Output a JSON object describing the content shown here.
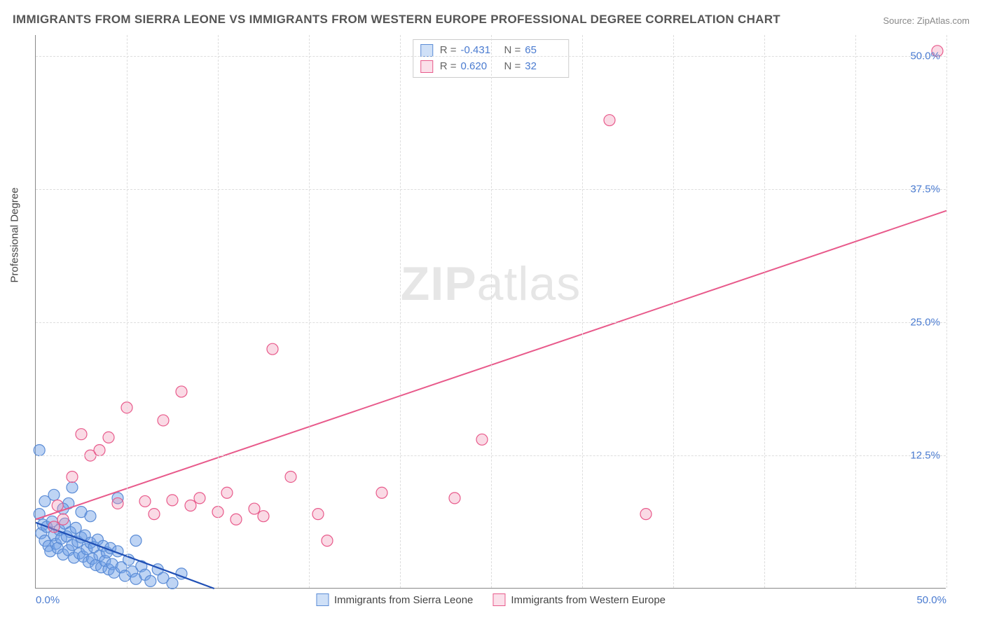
{
  "title": "IMMIGRANTS FROM SIERRA LEONE VS IMMIGRANTS FROM WESTERN EUROPE PROFESSIONAL DEGREE CORRELATION CHART",
  "source": "Source: ZipAtlas.com",
  "ylabel": "Professional Degree",
  "watermark_bold": "ZIP",
  "watermark_rest": "atlas",
  "chart": {
    "type": "scatter",
    "xlim": [
      0,
      50
    ],
    "ylim": [
      0,
      52
    ],
    "xtick_labels": [
      "0.0%",
      "50.0%"
    ],
    "xtick_positions": [
      0,
      50
    ],
    "ytick_labels": [
      "12.5%",
      "25.0%",
      "37.5%",
      "50.0%"
    ],
    "ytick_positions": [
      12.5,
      25,
      37.5,
      50
    ],
    "xgrid_positions": [
      5,
      10,
      15,
      20,
      25,
      30,
      35,
      40,
      45,
      50
    ],
    "tick_color": "#4a7bd0",
    "grid_color": "#dddddd",
    "label_fontsize": 15,
    "marker_radius": 8,
    "series": [
      {
        "name": "Immigrants from Sierra Leone",
        "fill": "rgba(110,160,230,0.45)",
        "stroke": "#5b8cd6",
        "line_color": "#1f4fb5",
        "line_width": 2.2,
        "R": "-0.431",
        "N": "65",
        "swatch_fill": "#cfe0f7",
        "swatch_border": "#5b8cd6",
        "trend": {
          "x1": 0,
          "y1": 6.2,
          "x2": 9.8,
          "y2": 0
        },
        "points": [
          [
            0.3,
            5.2
          ],
          [
            0.4,
            6.0
          ],
          [
            0.5,
            4.5
          ],
          [
            0.6,
            5.8
          ],
          [
            0.7,
            4.0
          ],
          [
            0.8,
            3.5
          ],
          [
            0.9,
            6.3
          ],
          [
            1.0,
            5.0
          ],
          [
            1.1,
            4.2
          ],
          [
            1.2,
            3.8
          ],
          [
            1.3,
            5.5
          ],
          [
            1.4,
            4.7
          ],
          [
            1.5,
            3.2
          ],
          [
            1.6,
            6.1
          ],
          [
            1.7,
            4.9
          ],
          [
            1.8,
            3.6
          ],
          [
            1.9,
            5.3
          ],
          [
            2.0,
            4.1
          ],
          [
            2.1,
            2.9
          ],
          [
            2.2,
            5.7
          ],
          [
            2.3,
            4.4
          ],
          [
            2.4,
            3.3
          ],
          [
            2.5,
            4.8
          ],
          [
            2.6,
            3.0
          ],
          [
            2.7,
            5.0
          ],
          [
            2.8,
            3.7
          ],
          [
            2.9,
            2.5
          ],
          [
            3.0,
            4.3
          ],
          [
            3.1,
            2.8
          ],
          [
            3.2,
            3.9
          ],
          [
            3.3,
            2.2
          ],
          [
            3.4,
            4.6
          ],
          [
            3.5,
            3.1
          ],
          [
            3.6,
            2.0
          ],
          [
            3.7,
            4.0
          ],
          [
            3.8,
            2.6
          ],
          [
            3.9,
            3.4
          ],
          [
            4.0,
            1.8
          ],
          [
            4.1,
            3.8
          ],
          [
            4.2,
            2.3
          ],
          [
            4.3,
            1.5
          ],
          [
            4.5,
            3.5
          ],
          [
            4.7,
            2.0
          ],
          [
            4.9,
            1.2
          ],
          [
            5.1,
            2.7
          ],
          [
            5.3,
            1.6
          ],
          [
            5.5,
            0.9
          ],
          [
            5.8,
            2.1
          ],
          [
            6.0,
            1.3
          ],
          [
            6.3,
            0.7
          ],
          [
            6.7,
            1.8
          ],
          [
            7.0,
            1.0
          ],
          [
            7.5,
            0.5
          ],
          [
            8.0,
            1.4
          ],
          [
            0.2,
            7.0
          ],
          [
            0.5,
            8.2
          ],
          [
            1.0,
            8.8
          ],
          [
            1.8,
            8.0
          ],
          [
            2.5,
            7.2
          ],
          [
            0.2,
            13.0
          ],
          [
            4.5,
            8.5
          ],
          [
            5.5,
            4.5
          ],
          [
            3.0,
            6.8
          ],
          [
            1.5,
            7.5
          ],
          [
            2.0,
            9.5
          ]
        ]
      },
      {
        "name": "Immigrants from Western Europe",
        "fill": "rgba(240,150,180,0.35)",
        "stroke": "#e85a8b",
        "line_color": "#e85a8b",
        "line_width": 2,
        "R": "0.620",
        "N": "32",
        "swatch_fill": "#fbe0ea",
        "swatch_border": "#e85a8b",
        "trend": {
          "x1": 0,
          "y1": 6.5,
          "x2": 50,
          "y2": 35.5
        },
        "points": [
          [
            1.0,
            5.8
          ],
          [
            1.5,
            6.5
          ],
          [
            2.0,
            10.5
          ],
          [
            2.5,
            14.5
          ],
          [
            3.0,
            12.5
          ],
          [
            3.5,
            13.0
          ],
          [
            4.0,
            14.2
          ],
          [
            4.5,
            8.0
          ],
          [
            5.0,
            17.0
          ],
          [
            6.0,
            8.2
          ],
          [
            6.5,
            7.0
          ],
          [
            7.0,
            15.8
          ],
          [
            7.5,
            8.3
          ],
          [
            8.0,
            18.5
          ],
          [
            8.5,
            7.8
          ],
          [
            9.0,
            8.5
          ],
          [
            10.0,
            7.2
          ],
          [
            10.5,
            9.0
          ],
          [
            11.0,
            6.5
          ],
          [
            12.0,
            7.5
          ],
          [
            12.5,
            6.8
          ],
          [
            13.0,
            22.5
          ],
          [
            14.0,
            10.5
          ],
          [
            15.5,
            7.0
          ],
          [
            16.0,
            4.5
          ],
          [
            19.0,
            9.0
          ],
          [
            23.0,
            8.5
          ],
          [
            24.5,
            14.0
          ],
          [
            31.5,
            44.0
          ],
          [
            33.5,
            7.0
          ],
          [
            49.5,
            50.5
          ],
          [
            1.2,
            7.8
          ]
        ]
      }
    ]
  },
  "legend_labels": {
    "R": "R =",
    "N": "N ="
  }
}
